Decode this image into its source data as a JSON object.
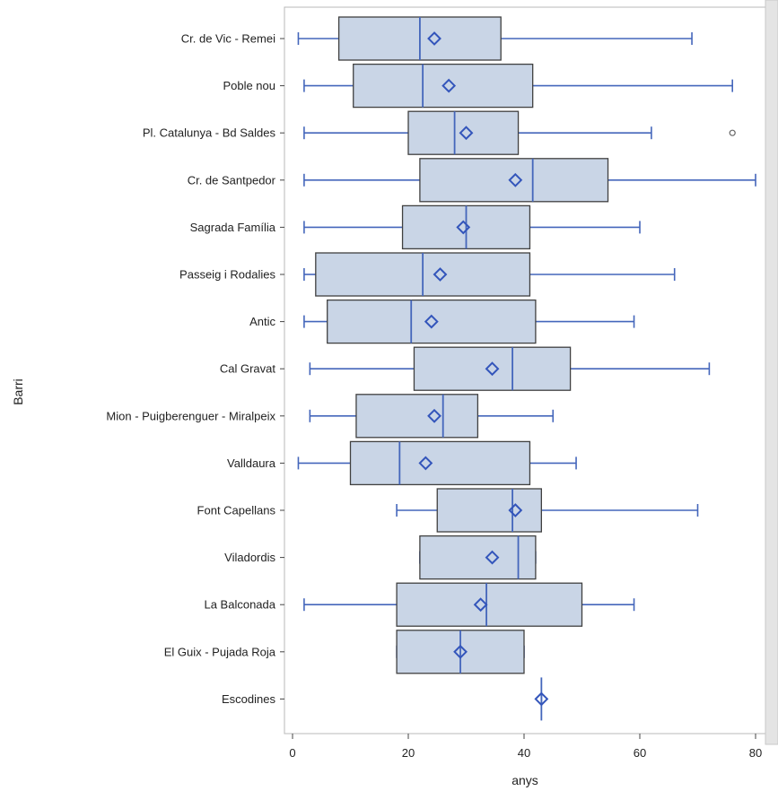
{
  "chart_data": {
    "type": "box",
    "title": "",
    "xlabel": "anys",
    "ylabel": "Barri",
    "xlim": [
      -1,
      80.5
    ],
    "xticks": [
      0,
      20,
      40,
      60,
      80
    ],
    "grid": false,
    "box_fill": "#c9d5e6",
    "box_stroke": "#404040",
    "whisker_color": "#4466bb",
    "mean_color": "#3355bb",
    "series": [
      {
        "name": "Cr. de Vic - Remei",
        "min": 1,
        "q1": 8,
        "median": 22,
        "mean": 24.5,
        "q3": 36,
        "max": 69,
        "outliers": []
      },
      {
        "name": "Poble nou",
        "min": 2,
        "q1": 10.5,
        "median": 22.5,
        "mean": 27,
        "q3": 41.5,
        "max": 76,
        "outliers": []
      },
      {
        "name": "Pl. Catalunya - Bd Saldes",
        "min": 2,
        "q1": 20,
        "median": 28,
        "mean": 30,
        "q3": 39,
        "max": 62,
        "outliers": [
          76
        ]
      },
      {
        "name": "Cr. de Santpedor",
        "min": 2,
        "q1": 22,
        "median": 41.5,
        "mean": 38.5,
        "q3": 54.5,
        "max": 80,
        "outliers": []
      },
      {
        "name": "Sagrada Família",
        "min": 2,
        "q1": 19,
        "median": 30,
        "mean": 29.5,
        "q3": 41,
        "max": 60,
        "outliers": []
      },
      {
        "name": "Passeig i Rodalies",
        "min": 2,
        "q1": 4,
        "median": 22.5,
        "mean": 25.5,
        "q3": 41,
        "max": 66,
        "outliers": []
      },
      {
        "name": "Antic",
        "min": 2,
        "q1": 6,
        "median": 20.5,
        "mean": 24,
        "q3": 42,
        "max": 59,
        "outliers": []
      },
      {
        "name": "Cal Gravat",
        "min": 3,
        "q1": 21,
        "median": 38,
        "mean": 34.5,
        "q3": 48,
        "max": 72,
        "outliers": []
      },
      {
        "name": "Mion - Puigberenguer - Miralpeix",
        "min": 3,
        "q1": 11,
        "median": 26,
        "mean": 24.5,
        "q3": 32,
        "max": 45,
        "outliers": []
      },
      {
        "name": "Valldaura",
        "min": 1,
        "q1": 10,
        "median": 18.5,
        "mean": 23,
        "q3": 41,
        "max": 49,
        "outliers": []
      },
      {
        "name": "Font Capellans",
        "min": 18,
        "q1": 25,
        "median": 38,
        "mean": 38.5,
        "q3": 43,
        "max": 70,
        "outliers": []
      },
      {
        "name": "Viladordis",
        "min": 22,
        "q1": 22,
        "median": 39,
        "mean": 34.5,
        "q3": 42,
        "max": 42,
        "outliers": []
      },
      {
        "name": "La Balconada",
        "min": 2,
        "q1": 18,
        "median": 33.5,
        "mean": 32.5,
        "q3": 50,
        "max": 59,
        "outliers": []
      },
      {
        "name": "El Guix - Pujada Roja",
        "min": 18,
        "q1": 18,
        "median": 29,
        "mean": 29,
        "q3": 40,
        "max": 40,
        "outliers": []
      },
      {
        "name": "Escodines",
        "min": 43,
        "q1": 43,
        "median": 43,
        "mean": 43,
        "q3": 43,
        "max": 43,
        "outliers": []
      }
    ]
  }
}
